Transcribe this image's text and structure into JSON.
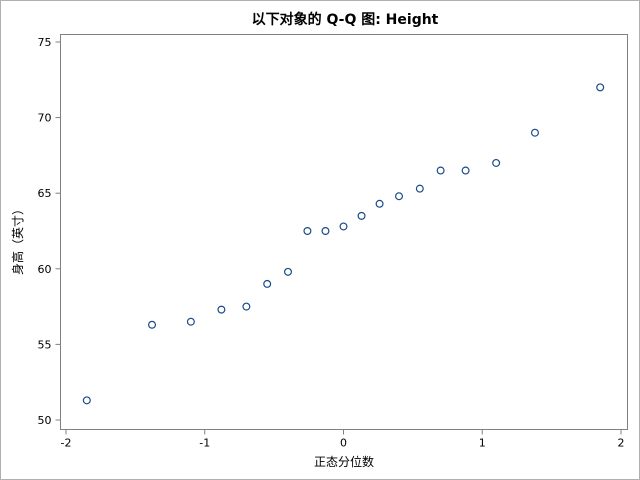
{
  "chart_data": {
    "type": "scatter",
    "title": "以下对象的 Q-Q 图: Height",
    "xlabel": "正态分位数",
    "ylabel": "身高（英寸）",
    "xlim": [
      -2,
      2
    ],
    "ylim": [
      50,
      75
    ],
    "xticks": [
      "-2",
      "-1",
      "0",
      "1",
      "2"
    ],
    "yticks": [
      "50",
      "55",
      "60",
      "65",
      "70",
      "75"
    ],
    "grid": false,
    "marker_color": "#1a4a8a",
    "series": [
      {
        "points": [
          {
            "x": -1.85,
            "y": 51.3
          },
          {
            "x": -1.38,
            "y": 56.3
          },
          {
            "x": -1.1,
            "y": 56.5
          },
          {
            "x": -0.88,
            "y": 57.3
          },
          {
            "x": -0.7,
            "y": 57.5
          },
          {
            "x": -0.55,
            "y": 59.0
          },
          {
            "x": -0.4,
            "y": 59.8
          },
          {
            "x": -0.26,
            "y": 62.5
          },
          {
            "x": -0.13,
            "y": 62.5
          },
          {
            "x": 0.0,
            "y": 62.8
          },
          {
            "x": 0.13,
            "y": 63.5
          },
          {
            "x": 0.26,
            "y": 64.3
          },
          {
            "x": 0.4,
            "y": 64.8
          },
          {
            "x": 0.55,
            "y": 65.3
          },
          {
            "x": 0.7,
            "y": 66.5
          },
          {
            "x": 0.88,
            "y": 66.5
          },
          {
            "x": 1.1,
            "y": 67.0
          },
          {
            "x": 1.38,
            "y": 69.0
          },
          {
            "x": 1.85,
            "y": 72.0
          }
        ]
      }
    ]
  }
}
